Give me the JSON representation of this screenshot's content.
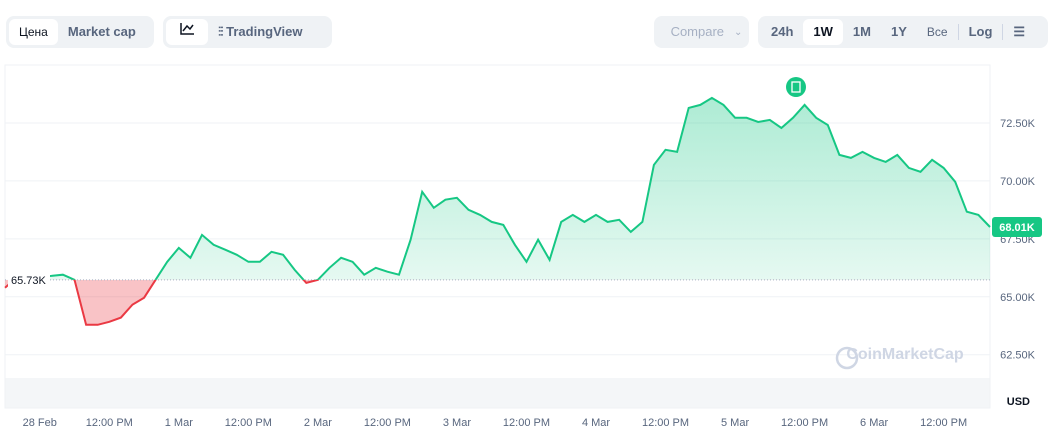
{
  "toolbar": {
    "left_tabs": [
      "Цена",
      "Market cap"
    ],
    "chart_view": "TradingView",
    "compare": "Compare",
    "ranges": [
      "24h",
      "1W",
      "1M",
      "1Y",
      "Все"
    ],
    "log": "Log"
  },
  "chart_data": {
    "type": "line",
    "watermark": "CoinMarketCap",
    "y_unit": "USD",
    "categories": [
      null,
      null,
      null,
      "28 Feb",
      null,
      null,
      null,
      null,
      null,
      "12:00 PM",
      null,
      null,
      null,
      null,
      null,
      "1 Mar",
      null,
      null,
      null,
      null,
      null,
      "12:00 PM",
      null,
      null,
      null,
      null,
      null,
      "2 Mar",
      null,
      null,
      null,
      null,
      null,
      "12:00 PM",
      null,
      null,
      null,
      null,
      null,
      "3 Mar",
      null,
      null,
      null,
      null,
      null,
      "12:00 PM",
      null,
      null,
      null,
      null,
      null,
      "4 Mar",
      null,
      null,
      null,
      null,
      null,
      "12:00 PM",
      null,
      null,
      null,
      null,
      null,
      "5 Mar",
      null,
      null,
      null,
      null,
      null,
      "12:00 PM",
      null,
      null,
      null,
      null,
      null,
      "6 Mar",
      null,
      null,
      null,
      null,
      null,
      "12:00 PM",
      null,
      null,
      null,
      null
    ],
    "values": [
      65390,
      65820,
      65820,
      65860,
      65900,
      65950,
      65730,
      63790,
      63790,
      63920,
      64100,
      64660,
      64960,
      65730,
      66510,
      67110,
      66680,
      67670,
      67240,
      67030,
      66810,
      66510,
      66510,
      66940,
      66810,
      66160,
      65600,
      65730,
      66250,
      66680,
      66510,
      65950,
      66250,
      66080,
      65950,
      67460,
      69530,
      68840,
      69190,
      69270,
      68750,
      68530,
      68230,
      68100,
      67240,
      66510,
      67460,
      66590,
      68230,
      68530,
      68230,
      68530,
      68230,
      68320,
      67800,
      68230,
      70690,
      71340,
      71250,
      73150,
      73280,
      73580,
      73280,
      72720,
      72720,
      72540,
      72630,
      72280,
      72720,
      73280,
      72720,
      72410,
      71120,
      70990,
      71250,
      70990,
      70820,
      71120,
      70560,
      70390,
      70910,
      70560,
      69960,
      68670,
      68530,
      68010
    ],
    "up_color": "#16c784",
    "down_color": "#ea3943",
    "baseline": {
      "value": 65730,
      "label": "65.73K"
    },
    "last_price": {
      "value": 68010,
      "label": "68.01K"
    },
    "ylim": [
      60200,
      75000
    ],
    "yticks": [
      {
        "value": 62500,
        "label": "62.50K"
      },
      {
        "value": 65000,
        "label": "65.00K"
      },
      {
        "value": 67500,
        "label": "67.50K"
      },
      {
        "value": 70000,
        "label": "70.00K"
      },
      {
        "value": 72500,
        "label": "72.50K"
      }
    ],
    "grid": true
  }
}
